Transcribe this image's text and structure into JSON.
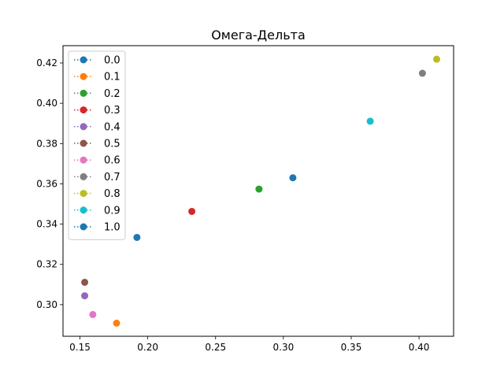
{
  "chart_data": {
    "type": "scatter",
    "title": "Омега-Дельта",
    "xlabel": "",
    "ylabel": "",
    "xlim": [
      0.1375,
      0.4255
    ],
    "ylim": [
      0.2843,
      0.4286
    ],
    "x_ticks": [
      0.15,
      0.2,
      0.25,
      0.3,
      0.35,
      0.4
    ],
    "x_tick_labels": [
      "0.15",
      "0.20",
      "0.25",
      "0.30",
      "0.35",
      "0.40"
    ],
    "y_ticks": [
      0.3,
      0.32,
      0.34,
      0.36,
      0.38,
      0.4,
      0.42
    ],
    "y_tick_labels": [
      "0.30",
      "0.32",
      "0.34",
      "0.36",
      "0.38",
      "0.40",
      "0.42"
    ],
    "grid": false,
    "legend_position": "upper-left",
    "series": [
      {
        "name": "0.0",
        "color": "#1f77b4",
        "x": [
          0.192
        ],
        "y": [
          0.3334
        ]
      },
      {
        "name": "0.1",
        "color": "#ff7f0e",
        "x": [
          0.177
        ],
        "y": [
          0.2908
        ]
      },
      {
        "name": "0.2",
        "color": "#2ca02c",
        "x": [
          0.282
        ],
        "y": [
          0.3574
        ]
      },
      {
        "name": "0.3",
        "color": "#d62728",
        "x": [
          0.2325
        ],
        "y": [
          0.3463
        ]
      },
      {
        "name": "0.4",
        "color": "#9467bd",
        "x": [
          0.1535
        ],
        "y": [
          0.3044
        ]
      },
      {
        "name": "0.5",
        "color": "#8c564b",
        "x": [
          0.1535
        ],
        "y": [
          0.3111
        ]
      },
      {
        "name": "0.6",
        "color": "#e377c2",
        "x": [
          0.1595
        ],
        "y": [
          0.2951
        ]
      },
      {
        "name": "0.7",
        "color": "#7f7f7f",
        "x": [
          0.4025
        ],
        "y": [
          0.4149
        ]
      },
      {
        "name": "0.8",
        "color": "#bcbd22",
        "x": [
          0.413
        ],
        "y": [
          0.4219
        ]
      },
      {
        "name": "0.9",
        "color": "#17becf",
        "x": [
          0.364
        ],
        "y": [
          0.3911
        ]
      },
      {
        "name": "1.0",
        "color": "#1f77b4",
        "x": [
          0.307
        ],
        "y": [
          0.363
        ]
      }
    ]
  }
}
